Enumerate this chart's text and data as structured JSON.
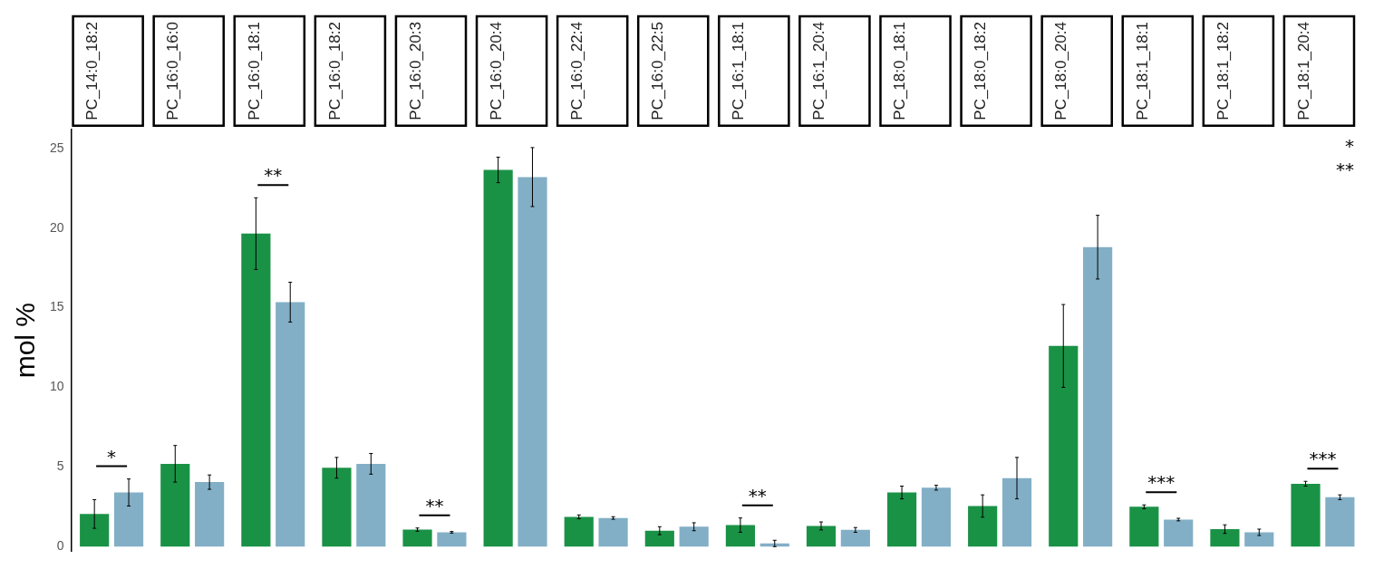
{
  "chart_data": {
    "type": "bar",
    "ylabel": "mol %",
    "categories": [
      "PC_14:0_18:2",
      "PC_16:0_16:0",
      "PC_16:0_18:1",
      "PC_16:0_18:2",
      "PC_16:0_20:3",
      "PC_16:0_20:4",
      "PC_16:0_22:4",
      "PC_16:0_22:5",
      "PC_16:1_18:1",
      "PC_16:1_20:4",
      "PC_18:0_18:1",
      "PC_18:0_18:2",
      "PC_18:0_20:4",
      "PC_18:1_18:1",
      "PC_18:1_18:2",
      "PC_18:1_20:4"
    ],
    "series": [
      {
        "color": "#1a9246",
        "values": [
          2.05,
          5.2,
          19.65,
          4.95,
          1.07,
          23.65,
          1.87,
          1.0,
          1.35,
          1.3,
          3.4,
          2.55,
          12.6,
          2.5,
          1.1,
          3.95
        ],
        "errors": [
          0.9,
          1.15,
          2.25,
          0.65,
          0.1,
          0.8,
          0.12,
          0.25,
          0.45,
          0.25,
          0.4,
          0.7,
          2.6,
          0.12,
          0.27,
          0.15
        ]
      },
      {
        "color": "#82afc6",
        "values": [
          3.4,
          4.05,
          15.35,
          5.2,
          0.9,
          23.2,
          1.8,
          1.25,
          0.2,
          1.05,
          3.7,
          4.3,
          18.8,
          1.7,
          0.9,
          3.1
        ],
        "errors": [
          0.85,
          0.45,
          1.25,
          0.65,
          0.05,
          1.85,
          0.08,
          0.25,
          0.2,
          0.15,
          0.15,
          1.3,
          2.0,
          0.08,
          0.2,
          0.15
        ]
      }
    ],
    "annotations": [
      {
        "text": "*",
        "x": "PC_14:0_18:2",
        "y": 2.05
      },
      {
        "text": "**",
        "x": "PC_16:0_18:1",
        "y": 19.65
      },
      {
        "text": "**",
        "x": "PC_16:0_20:3",
        "y": 1.07
      },
      {
        "text": "**",
        "x": "PC_16:1_18:1",
        "y": 1.35
      },
      "*",
      "**",
      {
        "text": "***",
        "x": "PC_18:1_18:1",
        "y": 2.5
      },
      {
        "text": "***",
        "x": "PC_18:1_20:4",
        "y": 3.95
      }
    ],
    "ylim": [
      -0.3,
      26.2
    ],
    "yticks": [
      0,
      5,
      10,
      15,
      20,
      25
    ],
    "grid": false,
    "legend": false
  }
}
